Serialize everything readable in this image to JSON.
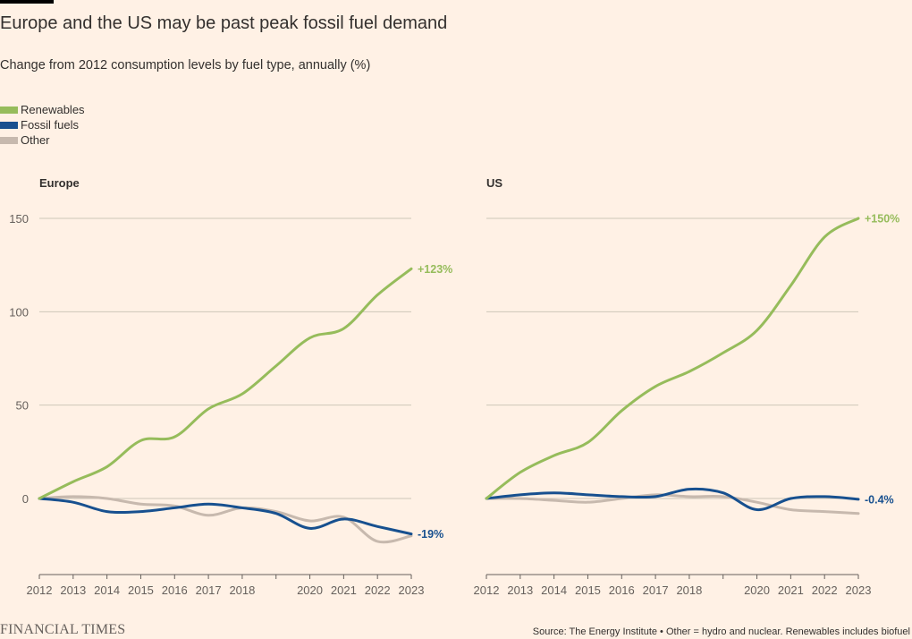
{
  "title": "Europe and the US may be past peak fossil fuel demand",
  "subtitle": "Change from 2012 consumption levels by fuel type, annually (%)",
  "legend": [
    {
      "label": "Renewables",
      "color": "#96BC5B"
    },
    {
      "label": "Fossil fuels",
      "color": "#17508F"
    },
    {
      "label": "Other",
      "color": "#C7B9AE"
    }
  ],
  "footer": {
    "brand": "FINANCIAL TIMES",
    "source": "Source: The Energy Institute • Other = hydro and nuclear. Renewables includes biofuel"
  },
  "chart_data": [
    {
      "type": "line",
      "title": "Europe",
      "x": [
        2012,
        2013,
        2014,
        2015,
        2016,
        2017,
        2018,
        2019,
        2020,
        2021,
        2022,
        2023
      ],
      "x_tick_labels": [
        "2012",
        "2013",
        "2014",
        "2015",
        "2016",
        "2017",
        "2018",
        "",
        "2020",
        "2021",
        "2022",
        "2023"
      ],
      "y_ticks": [
        0,
        50,
        100,
        150
      ],
      "ylim": [
        -40,
        155
      ],
      "series": [
        {
          "name": "Other",
          "color": "#C7B9AE",
          "values": [
            0,
            1,
            0,
            -3,
            -4,
            -9,
            -5,
            -7,
            -12,
            -10,
            -23,
            -20
          ]
        },
        {
          "name": "Fossil fuels",
          "color": "#17508F",
          "values": [
            0,
            -2,
            -7,
            -7,
            -5,
            -3,
            -5,
            -8,
            -16,
            -11,
            -15,
            -19
          ]
        },
        {
          "name": "Renewables",
          "color": "#96BC5B",
          "values": [
            0,
            9,
            17,
            31,
            33,
            48,
            56,
            71,
            86,
            91,
            109,
            123
          ]
        }
      ],
      "end_labels": [
        {
          "series": "Renewables",
          "text": "+123%"
        },
        {
          "series": "Fossil fuels",
          "text": "-19%"
        }
      ]
    },
    {
      "type": "line",
      "title": "US",
      "x": [
        2012,
        2013,
        2014,
        2015,
        2016,
        2017,
        2018,
        2019,
        2020,
        2021,
        2022,
        2023
      ],
      "x_tick_labels": [
        "2012",
        "2013",
        "2014",
        "2015",
        "2016",
        "2017",
        "2018",
        "",
        "2020",
        "2021",
        "2022",
        "2023"
      ],
      "y_ticks": [
        0,
        50,
        100,
        150
      ],
      "ylim": [
        -40,
        155
      ],
      "series": [
        {
          "name": "Other",
          "color": "#C7B9AE",
          "values": [
            0,
            0,
            -1,
            -2,
            0,
            2,
            1,
            1,
            -2,
            -6,
            -7,
            -8
          ]
        },
        {
          "name": "Fossil fuels",
          "color": "#17508F",
          "values": [
            0,
            2,
            3,
            2,
            1,
            1,
            5,
            3,
            -6,
            0,
            1,
            -0.4
          ]
        },
        {
          "name": "Renewables",
          "color": "#96BC5B",
          "values": [
            0,
            14,
            23,
            30,
            47,
            60,
            68,
            78,
            90,
            114,
            140,
            150
          ]
        }
      ],
      "end_labels": [
        {
          "series": "Renewables",
          "text": "+150%"
        },
        {
          "series": "Fossil fuels",
          "text": "-0.4%"
        }
      ]
    }
  ]
}
